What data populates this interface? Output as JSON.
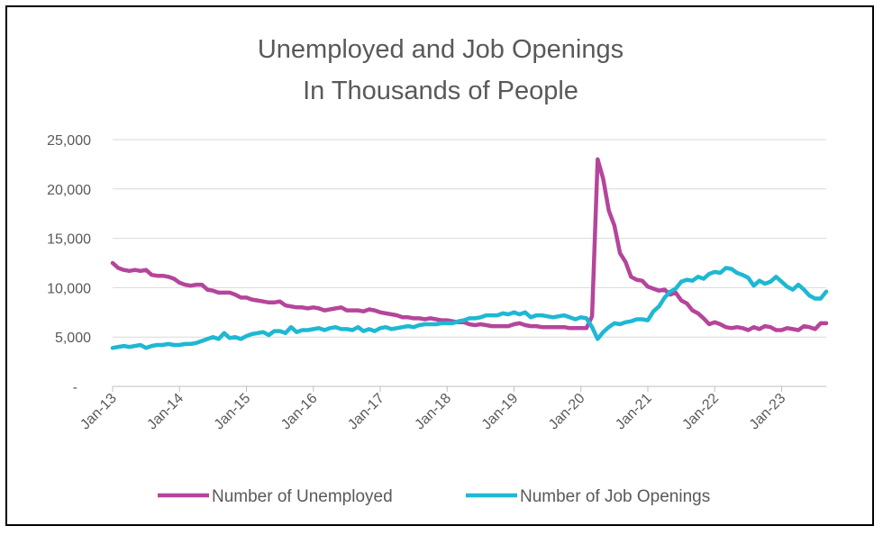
{
  "chart_data": {
    "type": "line",
    "title_lines": [
      "Unemployed and Job Openings",
      "In Thousands of People"
    ],
    "xlabel": "",
    "ylabel": "",
    "ylim": [
      0,
      25000
    ],
    "y_ticks": [
      0,
      5000,
      10000,
      15000,
      20000,
      25000
    ],
    "y_tick_labels": [
      "-",
      "5,000",
      "10,000",
      "15,000",
      "20,000",
      "25,000"
    ],
    "x_range": [
      "2013-01",
      "2023-09"
    ],
    "x_tick_labels": [
      "Jan-13",
      "Jan-14",
      "Jan-15",
      "Jan-16",
      "Jan-17",
      "Jan-18",
      "Jan-19",
      "Jan-20",
      "Jan-21",
      "Jan-22",
      "Jan-23"
    ],
    "x_ticks": [
      "2013-01",
      "2014-01",
      "2015-01",
      "2016-01",
      "2017-01",
      "2018-01",
      "2019-01",
      "2020-01",
      "2021-01",
      "2022-01",
      "2023-01"
    ],
    "grid": "horizontal",
    "legend_position": "bottom",
    "series": [
      {
        "name": "Number of Unemployed",
        "color": "#B5459B",
        "points": [
          [
            "2013-01",
            12500
          ],
          [
            "2013-02",
            12000
          ],
          [
            "2013-03",
            11800
          ],
          [
            "2013-04",
            11700
          ],
          [
            "2013-05",
            11800
          ],
          [
            "2013-06",
            11700
          ],
          [
            "2013-07",
            11800
          ],
          [
            "2013-08",
            11300
          ],
          [
            "2013-09",
            11200
          ],
          [
            "2013-10",
            11200
          ],
          [
            "2013-11",
            11100
          ],
          [
            "2013-12",
            10900
          ],
          [
            "2014-01",
            10500
          ],
          [
            "2014-02",
            10300
          ],
          [
            "2014-03",
            10200
          ],
          [
            "2014-04",
            10300
          ],
          [
            "2014-05",
            10300
          ],
          [
            "2014-06",
            9800
          ],
          [
            "2014-07",
            9700
          ],
          [
            "2014-08",
            9500
          ],
          [
            "2014-09",
            9500
          ],
          [
            "2014-10",
            9500
          ],
          [
            "2014-11",
            9300
          ],
          [
            "2014-12",
            9000
          ],
          [
            "2015-01",
            9000
          ],
          [
            "2015-02",
            8800
          ],
          [
            "2015-03",
            8700
          ],
          [
            "2015-04",
            8600
          ],
          [
            "2015-05",
            8500
          ],
          [
            "2015-06",
            8500
          ],
          [
            "2015-07",
            8600
          ],
          [
            "2015-08",
            8200
          ],
          [
            "2015-09",
            8100
          ],
          [
            "2015-10",
            8000
          ],
          [
            "2015-11",
            8000
          ],
          [
            "2015-12",
            7900
          ],
          [
            "2016-01",
            8000
          ],
          [
            "2016-02",
            7900
          ],
          [
            "2016-03",
            7700
          ],
          [
            "2016-04",
            7800
          ],
          [
            "2016-05",
            7900
          ],
          [
            "2016-06",
            8000
          ],
          [
            "2016-07",
            7700
          ],
          [
            "2016-08",
            7700
          ],
          [
            "2016-09",
            7700
          ],
          [
            "2016-10",
            7600
          ],
          [
            "2016-11",
            7800
          ],
          [
            "2016-12",
            7700
          ],
          [
            "2017-01",
            7500
          ],
          [
            "2017-02",
            7400
          ],
          [
            "2017-03",
            7300
          ],
          [
            "2017-04",
            7200
          ],
          [
            "2017-05",
            7000
          ],
          [
            "2017-06",
            7000
          ],
          [
            "2017-07",
            6900
          ],
          [
            "2017-08",
            6900
          ],
          [
            "2017-09",
            6800
          ],
          [
            "2017-10",
            6900
          ],
          [
            "2017-11",
            6800
          ],
          [
            "2017-12",
            6700
          ],
          [
            "2018-01",
            6700
          ],
          [
            "2018-02",
            6600
          ],
          [
            "2018-03",
            6500
          ],
          [
            "2018-04",
            6500
          ],
          [
            "2018-05",
            6300
          ],
          [
            "2018-06",
            6200
          ],
          [
            "2018-07",
            6300
          ],
          [
            "2018-08",
            6200
          ],
          [
            "2018-09",
            6100
          ],
          [
            "2018-10",
            6100
          ],
          [
            "2018-11",
            6100
          ],
          [
            "2018-12",
            6100
          ],
          [
            "2019-01",
            6300
          ],
          [
            "2019-02",
            6400
          ],
          [
            "2019-03",
            6200
          ],
          [
            "2019-04",
            6100
          ],
          [
            "2019-05",
            6100
          ],
          [
            "2019-06",
            6000
          ],
          [
            "2019-07",
            6000
          ],
          [
            "2019-08",
            6000
          ],
          [
            "2019-09",
            6000
          ],
          [
            "2019-10",
            6000
          ],
          [
            "2019-11",
            5900
          ],
          [
            "2019-12",
            5900
          ],
          [
            "2020-01",
            5900
          ],
          [
            "2020-02",
            5900
          ],
          [
            "2020-03",
            7100
          ],
          [
            "2020-04",
            23000
          ],
          [
            "2020-05",
            21000
          ],
          [
            "2020-06",
            17800
          ],
          [
            "2020-07",
            16300
          ],
          [
            "2020-08",
            13500
          ],
          [
            "2020-09",
            12600
          ],
          [
            "2020-10",
            11100
          ],
          [
            "2020-11",
            10800
          ],
          [
            "2020-12",
            10700
          ],
          [
            "2021-01",
            10100
          ],
          [
            "2021-02",
            9900
          ],
          [
            "2021-03",
            9700
          ],
          [
            "2021-04",
            9800
          ],
          [
            "2021-05",
            9300
          ],
          [
            "2021-06",
            9500
          ],
          [
            "2021-07",
            8700
          ],
          [
            "2021-08",
            8400
          ],
          [
            "2021-09",
            7700
          ],
          [
            "2021-10",
            7400
          ],
          [
            "2021-11",
            6900
          ],
          [
            "2021-12",
            6300
          ],
          [
            "2022-01",
            6500
          ],
          [
            "2022-02",
            6300
          ],
          [
            "2022-03",
            6000
          ],
          [
            "2022-04",
            5900
          ],
          [
            "2022-05",
            6000
          ],
          [
            "2022-06",
            5900
          ],
          [
            "2022-07",
            5700
          ],
          [
            "2022-08",
            6000
          ],
          [
            "2022-09",
            5800
          ],
          [
            "2022-10",
            6100
          ],
          [
            "2022-11",
            6000
          ],
          [
            "2022-12",
            5700
          ],
          [
            "2023-01",
            5700
          ],
          [
            "2023-02",
            5900
          ],
          [
            "2023-03",
            5800
          ],
          [
            "2023-04",
            5700
          ],
          [
            "2023-05",
            6100
          ],
          [
            "2023-06",
            6000
          ],
          [
            "2023-07",
            5800
          ],
          [
            "2023-08",
            6400
          ],
          [
            "2023-09",
            6400
          ]
        ]
      },
      {
        "name": "Number of Job Openings",
        "color": "#1EB8D3",
        "points": [
          [
            "2013-01",
            3900
          ],
          [
            "2013-02",
            4000
          ],
          [
            "2013-03",
            4100
          ],
          [
            "2013-04",
            4000
          ],
          [
            "2013-05",
            4100
          ],
          [
            "2013-06",
            4200
          ],
          [
            "2013-07",
            3900
          ],
          [
            "2013-08",
            4100
          ],
          [
            "2013-09",
            4200
          ],
          [
            "2013-10",
            4200
          ],
          [
            "2013-11",
            4300
          ],
          [
            "2013-12",
            4200
          ],
          [
            "2014-01",
            4200
          ],
          [
            "2014-02",
            4300
          ],
          [
            "2014-03",
            4300
          ],
          [
            "2014-04",
            4400
          ],
          [
            "2014-05",
            4600
          ],
          [
            "2014-06",
            4800
          ],
          [
            "2014-07",
            5000
          ],
          [
            "2014-08",
            4800
          ],
          [
            "2014-09",
            5400
          ],
          [
            "2014-10",
            4900
          ],
          [
            "2014-11",
            5000
          ],
          [
            "2014-12",
            4800
          ],
          [
            "2015-01",
            5100
          ],
          [
            "2015-02",
            5300
          ],
          [
            "2015-03",
            5400
          ],
          [
            "2015-04",
            5500
          ],
          [
            "2015-05",
            5200
          ],
          [
            "2015-06",
            5600
          ],
          [
            "2015-07",
            5600
          ],
          [
            "2015-08",
            5400
          ],
          [
            "2015-09",
            6000
          ],
          [
            "2015-10",
            5500
          ],
          [
            "2015-11",
            5700
          ],
          [
            "2015-12",
            5700
          ],
          [
            "2016-01",
            5800
          ],
          [
            "2016-02",
            5900
          ],
          [
            "2016-03",
            5700
          ],
          [
            "2016-04",
            5900
          ],
          [
            "2016-05",
            6000
          ],
          [
            "2016-06",
            5800
          ],
          [
            "2016-07",
            5800
          ],
          [
            "2016-08",
            5700
          ],
          [
            "2016-09",
            6000
          ],
          [
            "2016-10",
            5600
          ],
          [
            "2016-11",
            5800
          ],
          [
            "2016-12",
            5600
          ],
          [
            "2017-01",
            5900
          ],
          [
            "2017-02",
            6000
          ],
          [
            "2017-03",
            5800
          ],
          [
            "2017-04",
            5900
          ],
          [
            "2017-05",
            6000
          ],
          [
            "2017-06",
            6100
          ],
          [
            "2017-07",
            6000
          ],
          [
            "2017-08",
            6200
          ],
          [
            "2017-09",
            6300
          ],
          [
            "2017-10",
            6300
          ],
          [
            "2017-11",
            6300
          ],
          [
            "2017-12",
            6400
          ],
          [
            "2018-01",
            6400
          ],
          [
            "2018-02",
            6400
          ],
          [
            "2018-03",
            6600
          ],
          [
            "2018-04",
            6700
          ],
          [
            "2018-05",
            6900
          ],
          [
            "2018-06",
            6900
          ],
          [
            "2018-07",
            7000
          ],
          [
            "2018-08",
            7200
          ],
          [
            "2018-09",
            7200
          ],
          [
            "2018-10",
            7200
          ],
          [
            "2018-11",
            7400
          ],
          [
            "2018-12",
            7300
          ],
          [
            "2019-01",
            7500
          ],
          [
            "2019-02",
            7300
          ],
          [
            "2019-03",
            7500
          ],
          [
            "2019-04",
            7000
          ],
          [
            "2019-05",
            7200
          ],
          [
            "2019-06",
            7200
          ],
          [
            "2019-07",
            7100
          ],
          [
            "2019-08",
            7000
          ],
          [
            "2019-09",
            7100
          ],
          [
            "2019-10",
            7200
          ],
          [
            "2019-11",
            7000
          ],
          [
            "2019-12",
            6800
          ],
          [
            "2020-01",
            7000
          ],
          [
            "2020-02",
            6900
          ],
          [
            "2020-03",
            6000
          ],
          [
            "2020-04",
            4800
          ],
          [
            "2020-05",
            5500
          ],
          [
            "2020-06",
            6000
          ],
          [
            "2020-07",
            6400
          ],
          [
            "2020-08",
            6300
          ],
          [
            "2020-09",
            6500
          ],
          [
            "2020-10",
            6600
          ],
          [
            "2020-11",
            6800
          ],
          [
            "2020-12",
            6800
          ],
          [
            "2021-01",
            6700
          ],
          [
            "2021-02",
            7600
          ],
          [
            "2021-03",
            8100
          ],
          [
            "2021-04",
            9000
          ],
          [
            "2021-05",
            9600
          ],
          [
            "2021-06",
            9900
          ],
          [
            "2021-07",
            10600
          ],
          [
            "2021-08",
            10800
          ],
          [
            "2021-09",
            10700
          ],
          [
            "2021-10",
            11100
          ],
          [
            "2021-11",
            10900
          ],
          [
            "2021-12",
            11400
          ],
          [
            "2022-01",
            11600
          ],
          [
            "2022-02",
            11500
          ],
          [
            "2022-03",
            12000
          ],
          [
            "2022-04",
            11900
          ],
          [
            "2022-05",
            11500
          ],
          [
            "2022-06",
            11300
          ],
          [
            "2022-07",
            11000
          ],
          [
            "2022-08",
            10200
          ],
          [
            "2022-09",
            10700
          ],
          [
            "2022-10",
            10400
          ],
          [
            "2022-11",
            10600
          ],
          [
            "2022-12",
            11100
          ],
          [
            "2023-01",
            10600
          ],
          [
            "2023-02",
            10100
          ],
          [
            "2023-03",
            9800
          ],
          [
            "2023-04",
            10300
          ],
          [
            "2023-05",
            9800
          ],
          [
            "2023-06",
            9200
          ],
          [
            "2023-07",
            8900
          ],
          [
            "2023-08",
            8900
          ],
          [
            "2023-09",
            9600
          ]
        ]
      }
    ]
  }
}
